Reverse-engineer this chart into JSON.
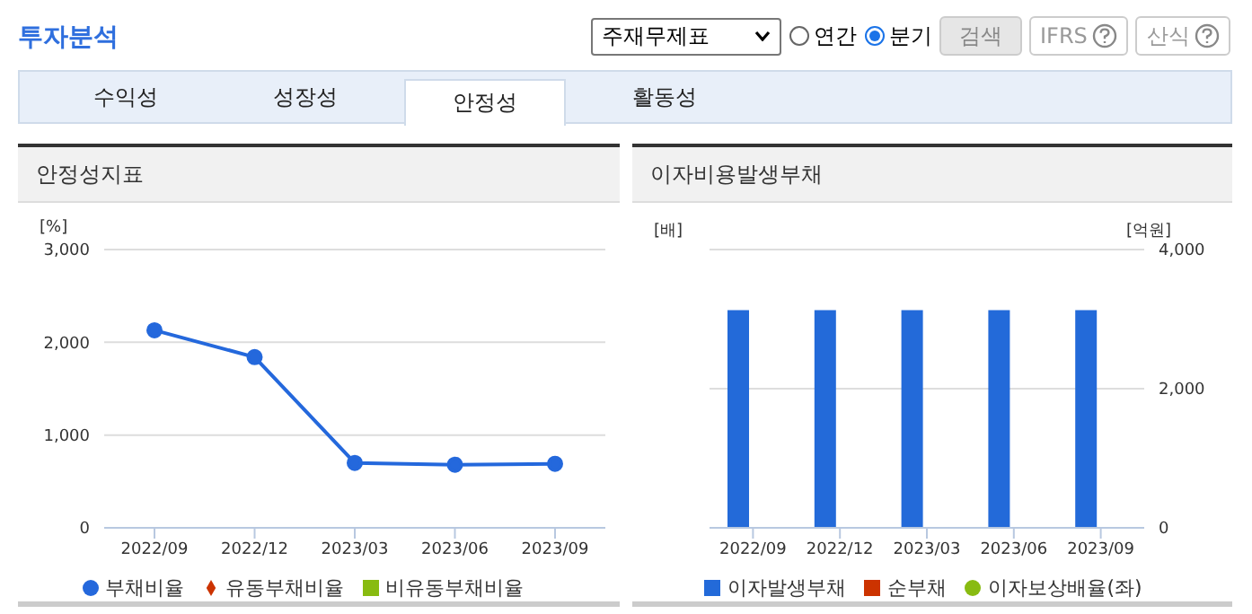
{
  "chart_data": [
    {
      "type": "other",
      "title": "투자분석",
      "annotations": [
        "주재무제표",
        "연간",
        "분기",
        "검색",
        "IFRS",
        "산식",
        "수익성",
        "성장성",
        "안정성",
        "활동성"
      ]
    },
    {
      "type": "line",
      "title": "안정성지표",
      "ylabel": "[%]",
      "categories": [
        "2022/09",
        "2022/12",
        "2023/03",
        "2023/06",
        "2023/09"
      ],
      "series": [
        {
          "name": "부채비율",
          "color": "#2468dc",
          "marker": "circle",
          "values": [
            2130,
            1840,
            700,
            680,
            690
          ]
        },
        {
          "name": "유동부채비율",
          "color": "#cc3300",
          "marker": "diamond",
          "values": [
            null,
            null,
            null,
            null,
            null
          ]
        },
        {
          "name": "비유동부채비율",
          "color": "#88bb11",
          "marker": "square",
          "values": [
            null,
            null,
            null,
            null,
            null
          ]
        }
      ],
      "ylim": [
        0,
        3000
      ],
      "yticks": [
        0,
        {
          "value": 1000,
          "label": "1,000"
        },
        {
          "value": 2000,
          "label": "2,000"
        },
        {
          "value": 3000,
          "label": "3,000"
        }
      ],
      "grid": "y",
      "legend": "bottom"
    },
    {
      "type": "bar",
      "title": "이자비용발생부채",
      "ylabel": "[배]",
      "y2label": "[억원]",
      "categories": [
        "2022/09",
        "2022/12",
        "2023/03",
        "2023/06",
        "2023/09"
      ],
      "series": [
        {
          "name": "이자발생부채",
          "type": "bar",
          "axis": "y2",
          "color": "#236ad9",
          "marker": "square",
          "values": [
            3130,
            3130,
            3130,
            3130,
            3130
          ]
        },
        {
          "name": "순부채",
          "type": "bar",
          "axis": "y2",
          "color": "#cc3300",
          "marker": "square",
          "values": [
            null,
            null,
            null,
            null,
            null
          ]
        },
        {
          "name": "이자보상배율(좌)",
          "type": "line",
          "color": "#88bb11",
          "marker": "circle",
          "values": [
            null,
            null,
            null,
            null,
            null
          ]
        }
      ],
      "y2lim": [
        0,
        4000
      ],
      "y2ticks": [
        0,
        {
          "value": 2000,
          "label": "2,000"
        },
        {
          "value": 4000,
          "label": "4,000"
        }
      ],
      "grid": "y",
      "legend": "bottom"
    }
  ]
}
